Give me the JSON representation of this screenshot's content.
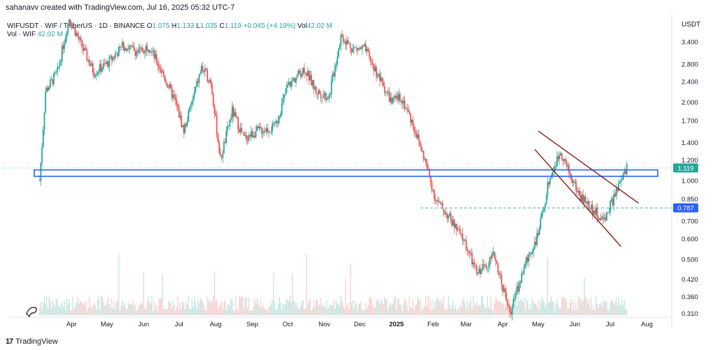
{
  "header": {
    "credit": "sahanavv created with TradingView.com, Jul 16, 2025 05:32 UTC-7",
    "symbol": "WIFUSDT · WIF / TetherUS · 1D · BINANCE",
    "open_label": "O",
    "open": "1.075",
    "high_label": "H",
    "high": "1.133",
    "low_label": "L",
    "low": "1.035",
    "close_label": "C",
    "close": "1.119",
    "change": "+0.045 (+4.19%)",
    "vol_label": "Vol",
    "vol": "42.02 M",
    "vol_series_label": "Vol · WIF",
    "vol_series_value": "42.02 M",
    "currency": "USDT"
  },
  "footer": {
    "brand": "TradingView",
    "logo_icon": "tradingview-logo-icon"
  },
  "colors": {
    "up": "#26a69a",
    "down": "#ef5350",
    "box": "#2962ff",
    "wedge": "#8b1a1a",
    "last_price": "#26a69a",
    "level_tag": "#2962ff"
  },
  "chart_data": {
    "type": "candlestick",
    "scale": "log",
    "y_ticks": [
      0.31,
      0.36,
      0.42,
      0.5,
      0.6,
      0.7,
      0.85,
      1.0,
      1.2,
      1.4,
      1.7,
      2.0,
      2.4,
      2.8,
      3.4
    ],
    "y_tick_labels": [
      "0.310",
      "0.360",
      "0.420",
      "0.500",
      "0.600",
      "0.700",
      "0.850",
      "1.000",
      "1.200",
      "1.400",
      "1.700",
      "2.000",
      "2.400",
      "2.800",
      "3.400"
    ],
    "x_labels": [
      "Apr",
      "May",
      "Jun",
      "Jul",
      "Aug",
      "Sep",
      "Oct",
      "Nov",
      "Dec",
      "2025",
      "Feb",
      "Mar",
      "Apr",
      "May",
      "Jun",
      "Jul",
      "Aug"
    ],
    "price_path": [
      [
        "2024-03-05",
        1.0
      ],
      [
        "2024-03-10",
        2.2
      ],
      [
        "2024-03-20",
        2.6
      ],
      [
        "2024-03-30",
        4.2
      ],
      [
        "2024-04-08",
        3.4
      ],
      [
        "2024-04-20",
        2.6
      ],
      [
        "2024-05-01",
        2.8
      ],
      [
        "2024-05-15",
        3.3
      ],
      [
        "2024-05-28",
        3.1
      ],
      [
        "2024-06-05",
        3.3
      ],
      [
        "2024-06-15",
        2.7
      ],
      [
        "2024-06-28",
        2.0
      ],
      [
        "2024-07-05",
        1.55
      ],
      [
        "2024-07-20",
        2.7
      ],
      [
        "2024-07-28",
        2.4
      ],
      [
        "2024-08-05",
        1.2
      ],
      [
        "2024-08-15",
        1.85
      ],
      [
        "2024-08-25",
        1.45
      ],
      [
        "2024-09-05",
        1.55
      ],
      [
        "2024-09-20",
        1.6
      ],
      [
        "2024-10-01",
        2.3
      ],
      [
        "2024-10-15",
        2.7
      ],
      [
        "2024-10-25",
        2.2
      ],
      [
        "2024-11-05",
        2.1
      ],
      [
        "2024-11-15",
        3.6
      ],
      [
        "2024-11-25",
        3.2
      ],
      [
        "2024-12-05",
        3.2
      ],
      [
        "2024-12-15",
        2.6
      ],
      [
        "2024-12-28",
        2.0
      ],
      [
        "2025-01-05",
        2.1
      ],
      [
        "2025-01-15",
        1.65
      ],
      [
        "2025-01-25",
        1.2
      ],
      [
        "2025-02-03",
        0.85
      ],
      [
        "2025-02-15",
        0.72
      ],
      [
        "2025-02-28",
        0.58
      ],
      [
        "2025-03-10",
        0.44
      ],
      [
        "2025-03-25",
        0.52
      ],
      [
        "2025-04-07",
        0.31
      ],
      [
        "2025-04-20",
        0.48
      ],
      [
        "2025-05-01",
        0.62
      ],
      [
        "2025-05-10",
        1.0
      ],
      [
        "2025-05-20",
        1.3
      ],
      [
        "2025-05-28",
        1.05
      ],
      [
        "2025-06-05",
        0.88
      ],
      [
        "2025-06-18",
        0.76
      ],
      [
        "2025-06-25",
        0.7
      ],
      [
        "2025-07-05",
        0.88
      ],
      [
        "2025-07-15",
        1.119
      ]
    ],
    "annotations": {
      "last_price": 1.119,
      "last_price_label": "1.119",
      "support_level": 0.787,
      "support_level_label": "0.787",
      "zone_low": 1.04,
      "zone_high": 1.1
    },
    "volume_series": "Vol · WIF",
    "volume_last": "42.02 M",
    "grid": false
  }
}
